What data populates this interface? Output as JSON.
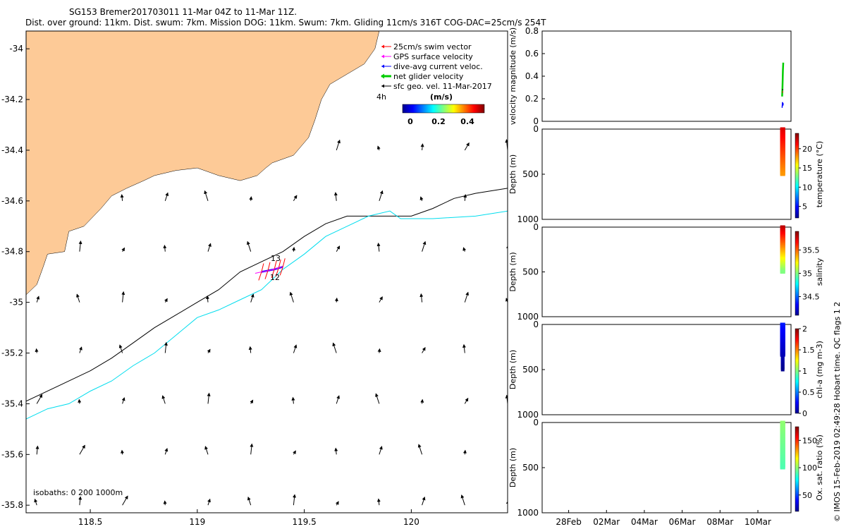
{
  "title": {
    "line1": "SG153 Bremer201703011 11-Mar 04Z to 11-Mar 11Z.",
    "line2": "Dist. over ground: 11km. Dist. swum: 7km. Mission DOG: 11km. Swum: 7km. Gliding 11cm/s 316T COG-DAC=25cm/s 254T"
  },
  "legend": {
    "items": [
      {
        "label": "25cm/s swim vector",
        "color": "#ff0000"
      },
      {
        "label": "GPS surface velocity",
        "color": "#ff00ff"
      },
      {
        "label": "dive-avg current veloc.",
        "color": "#0000ff"
      },
      {
        "label": "net glider velocity",
        "color": "#00cc00"
      },
      {
        "label": "sfc geo. vel. 11-Mar-2017",
        "color": "#000000"
      }
    ],
    "time_label": "4h",
    "colorbar_title": "(m/s)",
    "colorbar_ticks": [
      "0",
      "0.2",
      "0.4"
    ]
  },
  "isobath_text": "isobaths: 0   200  1000m",
  "dive_labels": [
    "13",
    "12"
  ],
  "credit": "© IMOS 15-Feb-2019 02:49:28 Hobart time. QC flags 1  2",
  "colors": {
    "land": "#fdca97",
    "isobath_200": "#000000",
    "isobath_1000": "#00ddee"
  },
  "chart_data": [
    {
      "type": "scatter",
      "title": "map",
      "xlabel": "",
      "ylabel": "",
      "xlim": [
        118.2,
        120.45
      ],
      "ylim": [
        -35.83,
        -33.93
      ],
      "xticks": [
        118.5,
        119,
        119.5,
        120
      ],
      "yticks": [
        -34,
        -34.2,
        -34.4,
        -34.6,
        -34.8,
        -35,
        -35.2,
        -35.4,
        -35.6,
        -35.8
      ],
      "vector_field": {
        "lons": [
          118.25,
          118.45,
          118.65,
          118.85,
          119.05,
          119.25,
          119.45,
          119.65,
          119.85,
          120.05,
          120.25,
          120.45
        ],
        "lats": [
          -34.4,
          -34.6,
          -34.8,
          -35.0,
          -35.2,
          -35.4,
          -35.6,
          -35.8
        ],
        "note": "surface geostrophic velocity arrows, predominantly north/north-east"
      },
      "isobath_200": [
        [
          118.2,
          -35.39
        ],
        [
          118.35,
          -35.33
        ],
        [
          118.5,
          -35.27
        ],
        [
          118.6,
          -35.22
        ],
        [
          118.7,
          -35.16
        ],
        [
          118.8,
          -35.1
        ],
        [
          118.9,
          -35.05
        ],
        [
          119.0,
          -35.0
        ],
        [
          119.1,
          -34.95
        ],
        [
          119.2,
          -34.88
        ],
        [
          119.3,
          -34.84
        ],
        [
          119.4,
          -34.8
        ],
        [
          119.5,
          -34.74
        ],
        [
          119.6,
          -34.69
        ],
        [
          119.7,
          -34.66
        ],
        [
          119.9,
          -34.66
        ],
        [
          120.0,
          -34.66
        ],
        [
          120.1,
          -34.63
        ],
        [
          120.2,
          -34.59
        ],
        [
          120.3,
          -34.57
        ],
        [
          120.45,
          -34.55
        ]
      ],
      "isobath_1000": [
        [
          118.2,
          -35.46
        ],
        [
          118.3,
          -35.42
        ],
        [
          118.4,
          -35.4
        ],
        [
          118.5,
          -35.35
        ],
        [
          118.6,
          -35.31
        ],
        [
          118.7,
          -35.25
        ],
        [
          118.8,
          -35.2
        ],
        [
          118.9,
          -35.13
        ],
        [
          119.0,
          -35.06
        ],
        [
          119.1,
          -35.03
        ],
        [
          119.2,
          -34.99
        ],
        [
          119.3,
          -34.95
        ],
        [
          119.4,
          -34.87
        ],
        [
          119.5,
          -34.81
        ],
        [
          119.6,
          -34.74
        ],
        [
          119.7,
          -34.7
        ],
        [
          119.8,
          -34.66
        ],
        [
          119.9,
          -34.64
        ],
        [
          119.95,
          -34.67
        ],
        [
          120.1,
          -34.67
        ],
        [
          120.3,
          -34.66
        ],
        [
          120.45,
          -34.64
        ]
      ],
      "glider_track": [
        [
          119.3,
          -34.88
        ],
        [
          119.33,
          -34.875
        ],
        [
          119.36,
          -34.87
        ],
        [
          119.38,
          -34.865
        ],
        [
          119.4,
          -34.86
        ]
      ],
      "coastline": [
        [
          118.2,
          -34.97
        ],
        [
          118.25,
          -34.93
        ],
        [
          118.28,
          -34.86
        ],
        [
          118.3,
          -34.81
        ],
        [
          118.38,
          -34.8
        ],
        [
          118.4,
          -34.72
        ],
        [
          118.47,
          -34.7
        ],
        [
          118.55,
          -34.63
        ],
        [
          118.6,
          -34.58
        ],
        [
          118.67,
          -34.55
        ],
        [
          118.75,
          -34.52
        ],
        [
          118.8,
          -34.5
        ],
        [
          118.9,
          -34.48
        ],
        [
          119.0,
          -34.47
        ],
        [
          119.1,
          -34.5
        ],
        [
          119.2,
          -34.52
        ],
        [
          119.28,
          -34.5
        ],
        [
          119.32,
          -34.47
        ],
        [
          119.35,
          -34.45
        ],
        [
          119.45,
          -34.42
        ],
        [
          119.52,
          -34.35
        ],
        [
          119.55,
          -34.28
        ],
        [
          119.58,
          -34.2
        ],
        [
          119.62,
          -34.14
        ],
        [
          119.7,
          -34.1
        ],
        [
          119.78,
          -34.06
        ],
        [
          119.83,
          -34.0
        ],
        [
          119.85,
          -33.93
        ]
      ]
    },
    {
      "type": "line",
      "title": "",
      "xlabel": "",
      "ylabel": "velocity magnitude (m/s)",
      "ylim": [
        0,
        0.8
      ],
      "yticks": [
        0,
        0.2,
        0.4,
        0.6,
        0.8
      ],
      "xlim": [
        27.6,
        11.5
      ],
      "series": [
        {
          "name": "net glider velocity",
          "color": "#00cc00",
          "x": [
            11.28,
            11.3,
            11.32,
            11.34
          ],
          "y": [
            0.22,
            0.3,
            0.45,
            0.52
          ]
        },
        {
          "name": "dive-avg current",
          "color": "#0000ff",
          "x": [
            11.28,
            11.3,
            11.32,
            11.34
          ],
          "y": [
            0.12,
            0.17,
            0.14,
            0.16
          ]
        },
        {
          "name": "swim",
          "color": "#ff0000",
          "x": [
            11.28,
            11.34
          ],
          "y": [
            0.26,
            0.26
          ]
        },
        {
          "name": "sfc geo",
          "color": "#000000",
          "x": [
            11.28,
            11.34
          ],
          "y": [
            0.28,
            0.28
          ]
        }
      ]
    },
    {
      "type": "scatter",
      "ylabel": "Depth (m)",
      "ylim": [
        1000,
        0
      ],
      "yticks": [
        0,
        500,
        1000
      ],
      "colorbar_label": "temperature (°C)",
      "colorbar_range": [
        2,
        24
      ],
      "colorbar_ticks": [
        5,
        10,
        15,
        20
      ],
      "profile_depth_range": [
        0,
        500
      ],
      "value_range": [
        18,
        22
      ]
    },
    {
      "type": "scatter",
      "ylabel": "Depth (m)",
      "ylim": [
        1000,
        0
      ],
      "yticks": [
        0,
        500,
        1000
      ],
      "colorbar_label": "salinity",
      "colorbar_range": [
        34.1,
        35.9
      ],
      "colorbar_ticks": [
        34.5,
        35,
        35.5
      ],
      "profile_depth_range": [
        0,
        500
      ],
      "value_range": [
        35.0,
        35.8
      ]
    },
    {
      "type": "scatter",
      "ylabel": "Depth (m)",
      "ylim": [
        1000,
        0
      ],
      "yticks": [
        0,
        500,
        1000
      ],
      "colorbar_label": "chl-a (mg m-3)",
      "colorbar_range": [
        0,
        2
      ],
      "colorbar_ticks": [
        0,
        0.5,
        1,
        1.5,
        2
      ],
      "profile_depth_range": [
        0,
        500
      ],
      "value_range": [
        0,
        0.3
      ]
    },
    {
      "type": "scatter",
      "ylabel": "Depth (m)",
      "ylim": [
        1000,
        0
      ],
      "yticks": [
        0,
        500,
        1000
      ],
      "colorbar_label": "Ox. sat. ratio (%)",
      "colorbar_range": [
        20,
        175
      ],
      "colorbar_ticks": [
        50,
        100,
        150
      ],
      "profile_depth_range": [
        0,
        500
      ],
      "value_range": [
        90,
        100
      ],
      "x_ticks": [
        "28Feb",
        "02Mar",
        "04Mar",
        "06Mar",
        "08Mar",
        "10Mar"
      ]
    }
  ]
}
